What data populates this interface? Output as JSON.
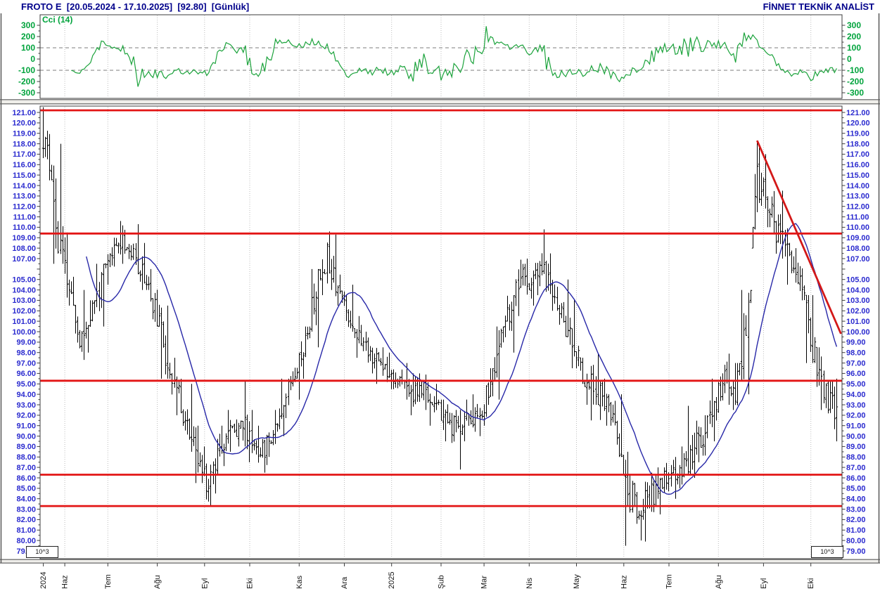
{
  "header": {
    "left": "FROTO E  [20.05.2024 - 17.10.2025]  [92.80]  [Günlük]",
    "right": "FİNNET TEKNİK ANALİST",
    "symbol": "FROTO E",
    "date_range": "20.05.2024 - 17.10.2025",
    "last_price": "92.80",
    "period": "Günlük"
  },
  "footer": {
    "scale_note_left": "10^3",
    "scale_note_right": "10^3"
  },
  "colors": {
    "header_text": "#00008b",
    "price_axis_text": "#2b2bcf",
    "cci_axis_text": "#00a33c",
    "cci_line": "#1ca33c",
    "ma_line": "#2828a8",
    "bar": "#000000",
    "level_line": "#e31515",
    "trend_line": "#d31818",
    "grid_dotted": "#bdbdbd",
    "ref_dashed": "#a8a8a8",
    "frame": "#3c3c3c",
    "separator_line": "#5a5a5a"
  },
  "cci_panel": {
    "label": "Cci (14)",
    "yticks": [
      300,
      200,
      100,
      0,
      -100,
      -200,
      -300
    ],
    "ylim": [
      -300,
      300
    ],
    "reference_lines": [
      100,
      -100
    ]
  },
  "price_panel": {
    "axis_min": 79,
    "axis_max": 121,
    "axis_step": 1,
    "label_format": "0.00",
    "skipped_labels": [
      106
    ],
    "levels": [
      121.2,
      109.4,
      95.3,
      86.3,
      83.3
    ]
  },
  "x_axis": {
    "labels": [
      "2024",
      "Haz",
      "Tem",
      "Ağu",
      "Eyl",
      "Eki",
      "Kas",
      "Ara",
      "2025",
      "Şub",
      "Mar",
      "Nis",
      "May",
      "Haz",
      "Tem",
      "Ağu",
      "Eyl",
      "Eki"
    ],
    "month_start_day": [
      0,
      10,
      30,
      53,
      75,
      96,
      119,
      140,
      162,
      185,
      205,
      226,
      248,
      270,
      291,
      314,
      335,
      357
    ]
  },
  "chart_data": [
    {
      "type": "line",
      "title": "Cci (14)",
      "ylim": [
        -300,
        300
      ],
      "yticks": [
        300,
        200,
        100,
        0,
        -100,
        -200,
        -300
      ],
      "reference_lines": [
        100,
        -100
      ],
      "legend_position": "top-left",
      "grid": "monthly-vertical-dotted",
      "derivation": "CCI(14) oscillator computed from the daily closes of the price series in chart_data[1]"
    },
    {
      "type": "ohlc",
      "title": "FROTO E daily price bars with 21-day moving average",
      "ylim": [
        79,
        121
      ],
      "ytick_step": 1,
      "total_days": 370,
      "last_close": 92.8,
      "moving_average_period": 21,
      "horizontal_levels": [
        121.2,
        109.4,
        95.3,
        86.3,
        83.3
      ],
      "trendline": {
        "from_day": 332,
        "from_price": 118.3,
        "to_day": 371,
        "to_price": 99.8
      },
      "weeks_note": "one row per week from 20.05.2024 to 17.10.2025, values read off chart: [high, low, close]",
      "weeks": [
        [
          121.5,
          114.5,
          117.5
        ],
        [
          118.0,
          106.5,
          108.5
        ],
        [
          109.5,
          102.5,
          104.0
        ],
        [
          104.0,
          97.3,
          99.0
        ],
        [
          103.0,
          98.0,
          101.5
        ],
        [
          106.5,
          100.5,
          105.0
        ],
        [
          109.0,
          104.5,
          107.5
        ],
        [
          110.6,
          106.5,
          109.0
        ],
        [
          110.3,
          105.5,
          107.0
        ],
        [
          108.5,
          104.0,
          105.5
        ],
        [
          106.0,
          100.5,
          102.0
        ],
        [
          102.5,
          95.5,
          98.0
        ],
        [
          97.5,
          92.0,
          94.5
        ],
        [
          95.0,
          88.5,
          91.0
        ],
        [
          91.0,
          85.5,
          87.5
        ],
        [
          89.0,
          83.3,
          85.5
        ],
        [
          91.0,
          84.5,
          89.5
        ],
        [
          92.5,
          88.5,
          90.5
        ],
        [
          95.3,
          89.0,
          91.5
        ],
        [
          92.5,
          87.5,
          89.5
        ],
        [
          91.0,
          86.5,
          88.5
        ],
        [
          92.5,
          88.0,
          90.5
        ],
        [
          95.5,
          90.0,
          93.5
        ],
        [
          98.0,
          93.5,
          96.5
        ],
        [
          100.5,
          95.5,
          99.0
        ],
        [
          106.0,
          98.5,
          104.0
        ],
        [
          109.6,
          103.5,
          107.5
        ],
        [
          109.3,
          102.5,
          104.5
        ],
        [
          104.5,
          100.0,
          101.5
        ],
        [
          101.5,
          97.5,
          99.5
        ],
        [
          100.0,
          96.0,
          98.0
        ],
        [
          98.5,
          95.0,
          97.0
        ],
        [
          98.0,
          94.5,
          96.0
        ],
        [
          97.0,
          93.5,
          95.0
        ],
        [
          96.0,
          92.0,
          94.0
        ],
        [
          96.0,
          92.5,
          94.5
        ],
        [
          95.0,
          91.0,
          93.0
        ],
        [
          93.5,
          89.5,
          91.5
        ],
        [
          92.5,
          86.8,
          90.5
        ],
        [
          93.5,
          89.5,
          92.0
        ],
        [
          94.0,
          90.0,
          91.5
        ],
        [
          96.5,
          91.0,
          94.5
        ],
        [
          100.5,
          93.5,
          98.5
        ],
        [
          103.5,
          98.0,
          102.0
        ],
        [
          106.9,
          101.5,
          105.0
        ],
        [
          107.0,
          102.5,
          104.5
        ],
        [
          109.8,
          103.5,
          106.0
        ],
        [
          107.5,
          102.0,
          104.0
        ],
        [
          105.0,
          99.5,
          101.0
        ],
        [
          103.0,
          96.5,
          98.0
        ],
        [
          97.5,
          93.0,
          95.5
        ],
        [
          97.9,
          91.5,
          94.5
        ],
        [
          95.5,
          91.0,
          93.0
        ],
        [
          94.0,
          88.0,
          90.0
        ],
        [
          88.5,
          79.5,
          84.5
        ],
        [
          85.5,
          80.0,
          82.5
        ],
        [
          86.5,
          79.9,
          84.0
        ],
        [
          87.0,
          82.5,
          85.5
        ],
        [
          88.0,
          84.0,
          86.0
        ],
        [
          89.0,
          85.0,
          87.0
        ],
        [
          92.9,
          86.0,
          88.5
        ],
        [
          92.0,
          87.5,
          90.0
        ],
        [
          95.5,
          89.5,
          93.0
        ],
        [
          97.9,
          93.0,
          95.5
        ],
        [
          97.0,
          92.5,
          94.0
        ],
        [
          104.0,
          94.0,
          101.0
        ],
        [
          118.3,
          108.0,
          114.0
        ],
        [
          117.0,
          110.0,
          112.5
        ],
        [
          113.5,
          107.0,
          109.0
        ],
        [
          109.9,
          104.5,
          107.5
        ],
        [
          108.0,
          103.0,
          105.0
        ],
        [
          103.5,
          97.0,
          99.5
        ],
        [
          98.5,
          92.5,
          95.0
        ],
        [
          95.5,
          89.5,
          92.8
        ]
      ],
      "x_months": {
        "labels": [
          "2024",
          "Haz",
          "Tem",
          "Ağu",
          "Eyl",
          "Eki",
          "Kas",
          "Ara",
          "2025",
          "Şub",
          "Mar",
          "Nis",
          "May",
          "Haz",
          "Tem",
          "Ağu",
          "Eyl",
          "Eki"
        ],
        "start_days": [
          0,
          10,
          30,
          53,
          75,
          96,
          119,
          140,
          162,
          185,
          205,
          226,
          248,
          270,
          291,
          314,
          335,
          357
        ]
      }
    }
  ]
}
